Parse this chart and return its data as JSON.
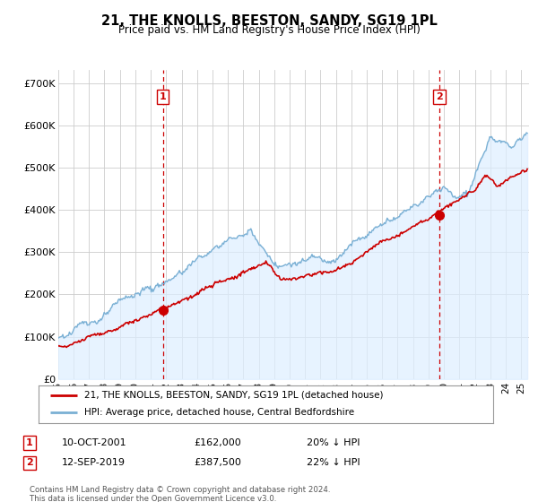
{
  "title": "21, THE KNOLLS, BEESTON, SANDY, SG19 1PL",
  "subtitle": "Price paid vs. HM Land Registry's House Price Index (HPI)",
  "ylabel_ticks": [
    "£0",
    "£100K",
    "£200K",
    "£300K",
    "£400K",
    "£500K",
    "£600K",
    "£700K"
  ],
  "ytick_values": [
    0,
    100000,
    200000,
    300000,
    400000,
    500000,
    600000,
    700000
  ],
  "ylim": [
    0,
    730000
  ],
  "xlim_start": 1995.0,
  "xlim_end": 2025.5,
  "sale1_x": 2001.78,
  "sale1_y": 162000,
  "sale1_label": "1",
  "sale1_date": "10-OCT-2001",
  "sale1_price": "£162,000",
  "sale1_hpi": "20% ↓ HPI",
  "sale2_x": 2019.7,
  "sale2_y": 387500,
  "sale2_label": "2",
  "sale2_date": "12-SEP-2019",
  "sale2_price": "£387,500",
  "sale2_hpi": "22% ↓ HPI",
  "line_color_property": "#cc0000",
  "line_color_hpi": "#7ab0d4",
  "fill_color_hpi": "#ddeeff",
  "dashed_color": "#cc0000",
  "legend_label_property": "21, THE KNOLLS, BEESTON, SANDY, SG19 1PL (detached house)",
  "legend_label_hpi": "HPI: Average price, detached house, Central Bedfordshire",
  "footer": "Contains HM Land Registry data © Crown copyright and database right 2024.\nThis data is licensed under the Open Government Licence v3.0.",
  "background_color": "#ffffff",
  "grid_color": "#cccccc"
}
